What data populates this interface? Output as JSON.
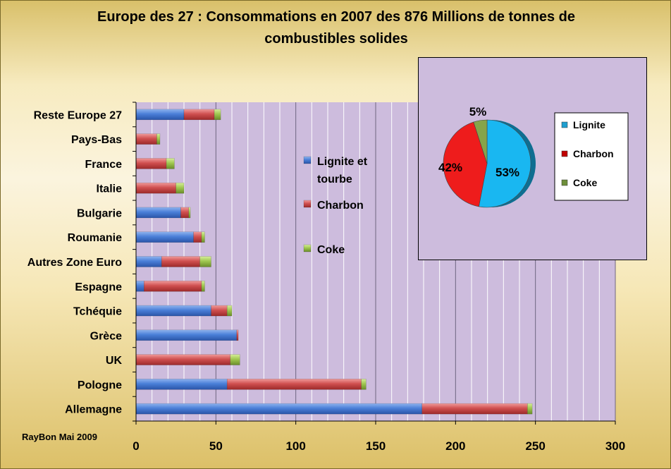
{
  "chart_data": [
    {
      "type": "bar",
      "orientation": "horizontal",
      "stacked": true,
      "title": "Europe des 27 : Consommations  en 2007 des 876 Millions de tonnes de combustibles solides",
      "title_line1": "Europe des 27 : Consommations  en 2007 des 876 Millions de tonnes de",
      "title_line2": "combustibles solides",
      "categories": [
        "Reste Europe 27",
        "Pays-Bas",
        "France",
        "Italie",
        "Bulgarie",
        "Roumanie",
        "Autres Zone Euro",
        "Espagne",
        "Tchéquie",
        "Grèce",
        "UK",
        "Pologne",
        "Allemagne"
      ],
      "series": [
        {
          "name": "Lignite et tourbe",
          "legend_lines": [
            "Lignite et",
            "tourbe"
          ],
          "color": "#3d6fcf",
          "values": [
            30,
            0,
            0,
            0,
            28,
            36,
            16,
            5,
            47,
            63,
            0,
            57,
            179
          ]
        },
        {
          "name": "Charbon",
          "legend_lines": [
            "Charbon"
          ],
          "color": "#c94848",
          "values": [
            19,
            13,
            19,
            25,
            5,
            5,
            24,
            36,
            10,
            1,
            59,
            84,
            66
          ]
        },
        {
          "name": "Coke",
          "legend_lines": [
            "Coke"
          ],
          "color": "#9bc14a",
          "values": [
            4,
            2,
            5,
            5,
            1,
            2,
            7,
            2,
            3,
            0,
            6,
            3,
            3
          ]
        }
      ],
      "xlim": [
        0,
        300
      ],
      "x_ticks": [
        0,
        50,
        100,
        150,
        200,
        250,
        300
      ],
      "grid": true,
      "plot_background": "#cdbcdd"
    },
    {
      "type": "pie",
      "labels": [
        "Lignite",
        "Charbon",
        "Coke"
      ],
      "values": [
        53,
        42,
        5
      ],
      "value_labels": [
        "53%",
        "42%",
        "5%"
      ],
      "colors": [
        "#19b7f1",
        "#ee1c1c",
        "#86a44a"
      ],
      "legend_colors": [
        "#1f9fd0",
        "#c00000",
        "#6e8f3a"
      ],
      "legend_position": "right"
    }
  ],
  "credit": "RayBon Mai 2009"
}
